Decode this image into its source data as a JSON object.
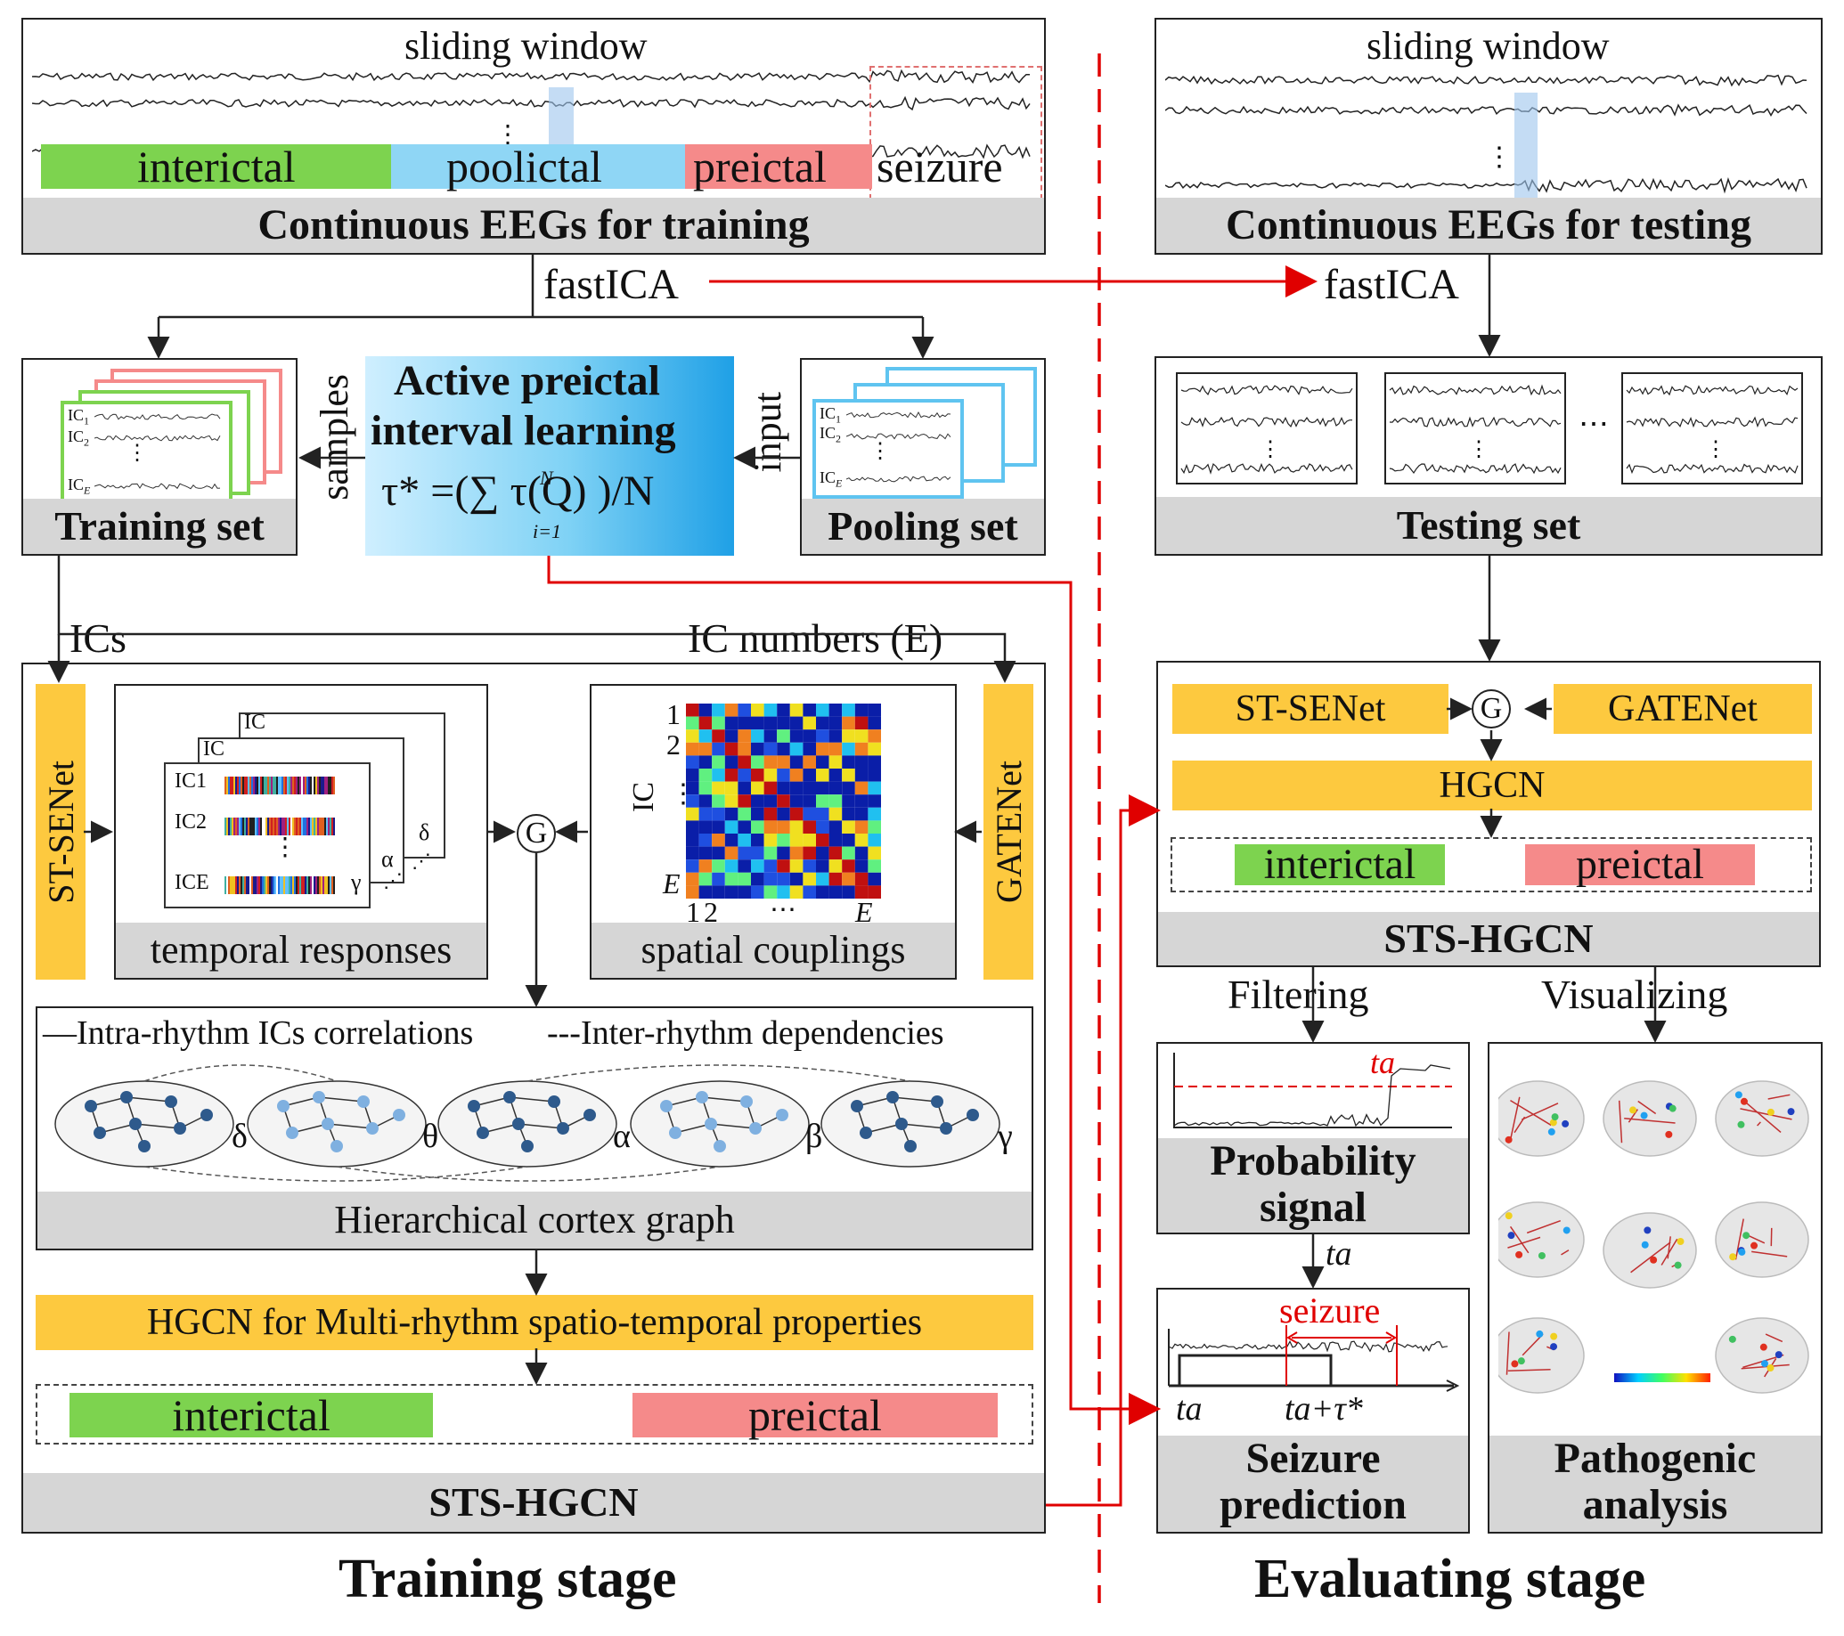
{
  "training": {
    "stage_label": "Training stage",
    "eeg": {
      "sliding_window": "sliding window",
      "footer": "Continuous EEGs for training",
      "labels": [
        "interictal",
        "poolictal",
        "preictal",
        "seizure"
      ]
    },
    "fastica": "fastICA",
    "training_set": {
      "footer": "Training set",
      "ic1": "IC",
      "ic1_sub": "1",
      "ic2": "IC",
      "ic2_sub": "2",
      "ice": "IC",
      "ice_sub": "E"
    },
    "samples": "samples",
    "active_learning": {
      "line1": "Active preictal",
      "line2": "interval learning",
      "formula": "τ* =(∑ τ(Q) )/N",
      "formula_sub": "i=1",
      "formula_sup": "N"
    },
    "input": "input",
    "pooling_set": {
      "footer": "Pooling set"
    },
    "ics": "ICs",
    "ic_numbers": "IC numbers (E)",
    "model": {
      "st_senet": "ST-SENet",
      "gatenet": "GATENet",
      "temporal": "temporal responses",
      "spatial": "spatial couplings",
      "g": "G",
      "matrix_axis": "IC",
      "matrix_ticks_y": [
        "1",
        "2",
        "⋮",
        "E"
      ],
      "matrix_ticks_x": [
        "1",
        "2",
        "⋯",
        "E"
      ],
      "rhythms": [
        "δ",
        "θ",
        "α",
        "β",
        "γ"
      ],
      "tr_ic1": "IC1",
      "tr_ic2": "IC2",
      "tr_ice": "ICE",
      "tr_greek": [
        "γ",
        "α",
        "δ"
      ],
      "tr_back": [
        "IC",
        "IC"
      ],
      "legend_intra": "—Intra-rhythm ICs correlations",
      "legend_inter": "---Inter-rhythm dependencies",
      "graph_footer": "Hierarchical cortex graph",
      "hgcn": "HGCN for Multi-rhythm spatio-temporal properties",
      "interictal": "interictal",
      "preictal": "preictal",
      "footer": "STS-HGCN"
    }
  },
  "evaluating": {
    "stage_label": "Evaluating stage",
    "eeg": {
      "sliding_window": "sliding window",
      "footer": "Continuous EEGs for testing"
    },
    "fastica": "fastICA",
    "testing_set": {
      "footer": "Testing set"
    },
    "model": {
      "st_senet": "ST-SENet",
      "gatenet": "GATENet",
      "g": "G",
      "hgcn": "HGCN",
      "interictal": "interictal",
      "preictal": "preictal",
      "footer": "STS-HGCN"
    },
    "filtering": "Filtering",
    "visualizing": "Visualizing",
    "probability": {
      "line1": "Probability",
      "line2": "signal",
      "ta": "ta"
    },
    "ta_arrow": "ta",
    "seizure_pred": {
      "seizure": "seizure",
      "ta": "ta",
      "ta_tau": "ta+τ*",
      "line1": "Seizure",
      "line2": "prediction"
    },
    "pathogenic": {
      "line1": "Pathogenic",
      "line2": "analysis"
    }
  },
  "colors": {
    "interictal": "#7dd34f",
    "preictal": "#f58a8a",
    "poolictal": "#8fd6f5",
    "accent_yellow": "#fdc93f",
    "arrow_red": "#e00000"
  }
}
